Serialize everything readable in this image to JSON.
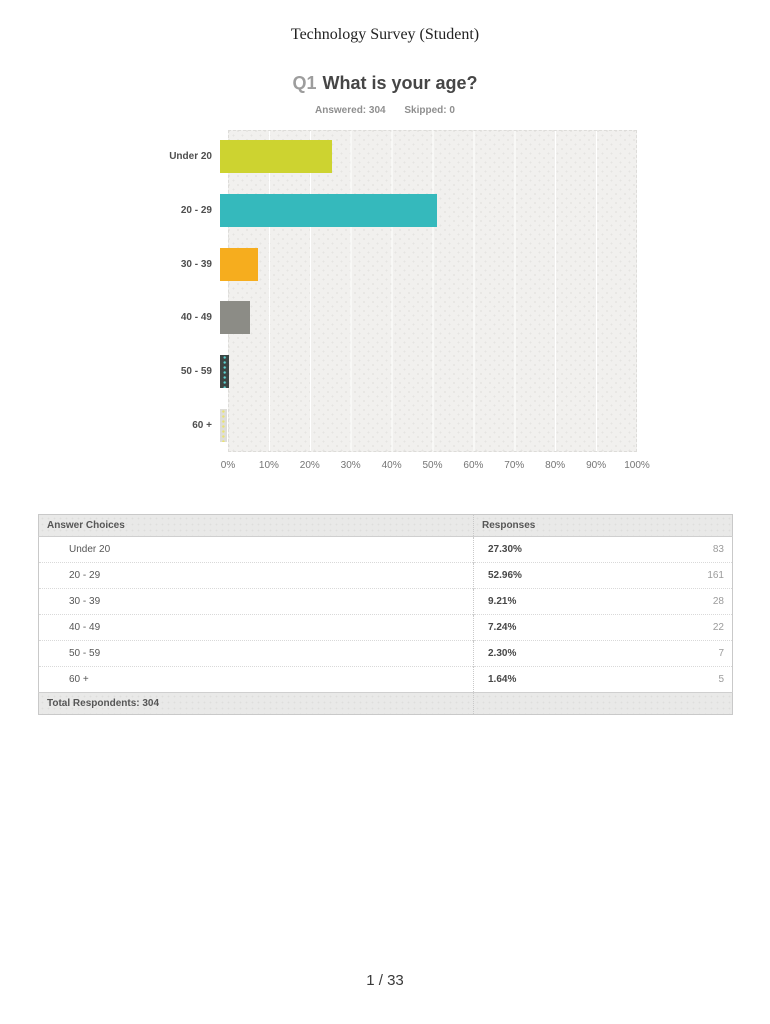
{
  "page": {
    "title": "Technology Survey (Student)",
    "page_number": "1 / 33"
  },
  "question": {
    "number": "Q1",
    "text": "What is your age?",
    "answered": "Answered: 304",
    "skipped": "Skipped: 0"
  },
  "chart_data": {
    "type": "bar",
    "orientation": "horizontal",
    "title": "What is your age?",
    "categories": [
      "Under 20",
      "20 - 29",
      "30 - 39",
      "40 - 49",
      "50 - 59",
      "60 +"
    ],
    "values": [
      27.3,
      52.96,
      9.21,
      7.24,
      2.3,
      1.64
    ],
    "counts": [
      83,
      161,
      28,
      22,
      7,
      5
    ],
    "colors": [
      "#cdd330",
      "#35b9bc",
      "#f6ad1e",
      "#8c8c86",
      "#3d4543",
      "#deddd9"
    ],
    "patterns": [
      null,
      null,
      null,
      null,
      "dots-teal",
      "dots-yellow"
    ],
    "xlabel": "",
    "ylabel": "",
    "xlim": [
      0,
      100
    ],
    "xticks": [
      "0%",
      "10%",
      "20%",
      "30%",
      "40%",
      "50%",
      "60%",
      "70%",
      "80%",
      "90%",
      "100%"
    ],
    "grid": true,
    "legend": "none",
    "plot_background": "#f1f0ee"
  },
  "table": {
    "headers": [
      "Answer Choices",
      "Responses"
    ],
    "rows": [
      {
        "label": "Under 20",
        "percent": "27.30%",
        "count": "83"
      },
      {
        "label": "20 - 29",
        "percent": "52.96%",
        "count": "161"
      },
      {
        "label": "30 - 39",
        "percent": "9.21%",
        "count": "28"
      },
      {
        "label": "40 - 49",
        "percent": "7.24%",
        "count": "22"
      },
      {
        "label": "50 - 59",
        "percent": "2.30%",
        "count": "7"
      },
      {
        "label": "60 +",
        "percent": "1.64%",
        "count": "5"
      }
    ],
    "footer": "Total Respondents: 304"
  }
}
